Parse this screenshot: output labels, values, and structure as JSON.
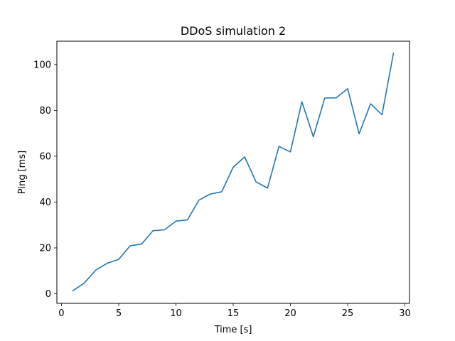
{
  "chart_data": {
    "type": "line",
    "title": "DDoS simulation 2",
    "xlabel": "Time [s]",
    "ylabel": "Ping [ms]",
    "xlim": [
      -0.4,
      30.4
    ],
    "ylim": [
      -4.2,
      110.2
    ],
    "xticks": [
      0,
      5,
      10,
      15,
      20,
      25,
      30
    ],
    "yticks": [
      0,
      20,
      40,
      60,
      80,
      100
    ],
    "grid": false,
    "series": [
      {
        "color": "#1f77b4",
        "x": [
          1,
          2,
          3,
          4,
          5,
          6,
          7,
          8,
          9,
          10,
          11,
          12,
          13,
          14,
          15,
          16,
          17,
          18,
          19,
          20,
          21,
          22,
          23,
          24,
          25,
          26,
          27,
          28,
          29
        ],
        "y": [
          1.3,
          4.7,
          10.3,
          13.3,
          15.0,
          20.9,
          21.7,
          27.5,
          27.9,
          31.7,
          32.2,
          40.8,
          43.5,
          44.5,
          55.2,
          59.7,
          48.8,
          46.1,
          64.3,
          61.9,
          83.8,
          68.5,
          85.4,
          85.5,
          89.5,
          69.8,
          82.9,
          78.1,
          105.0
        ]
      }
    ]
  }
}
